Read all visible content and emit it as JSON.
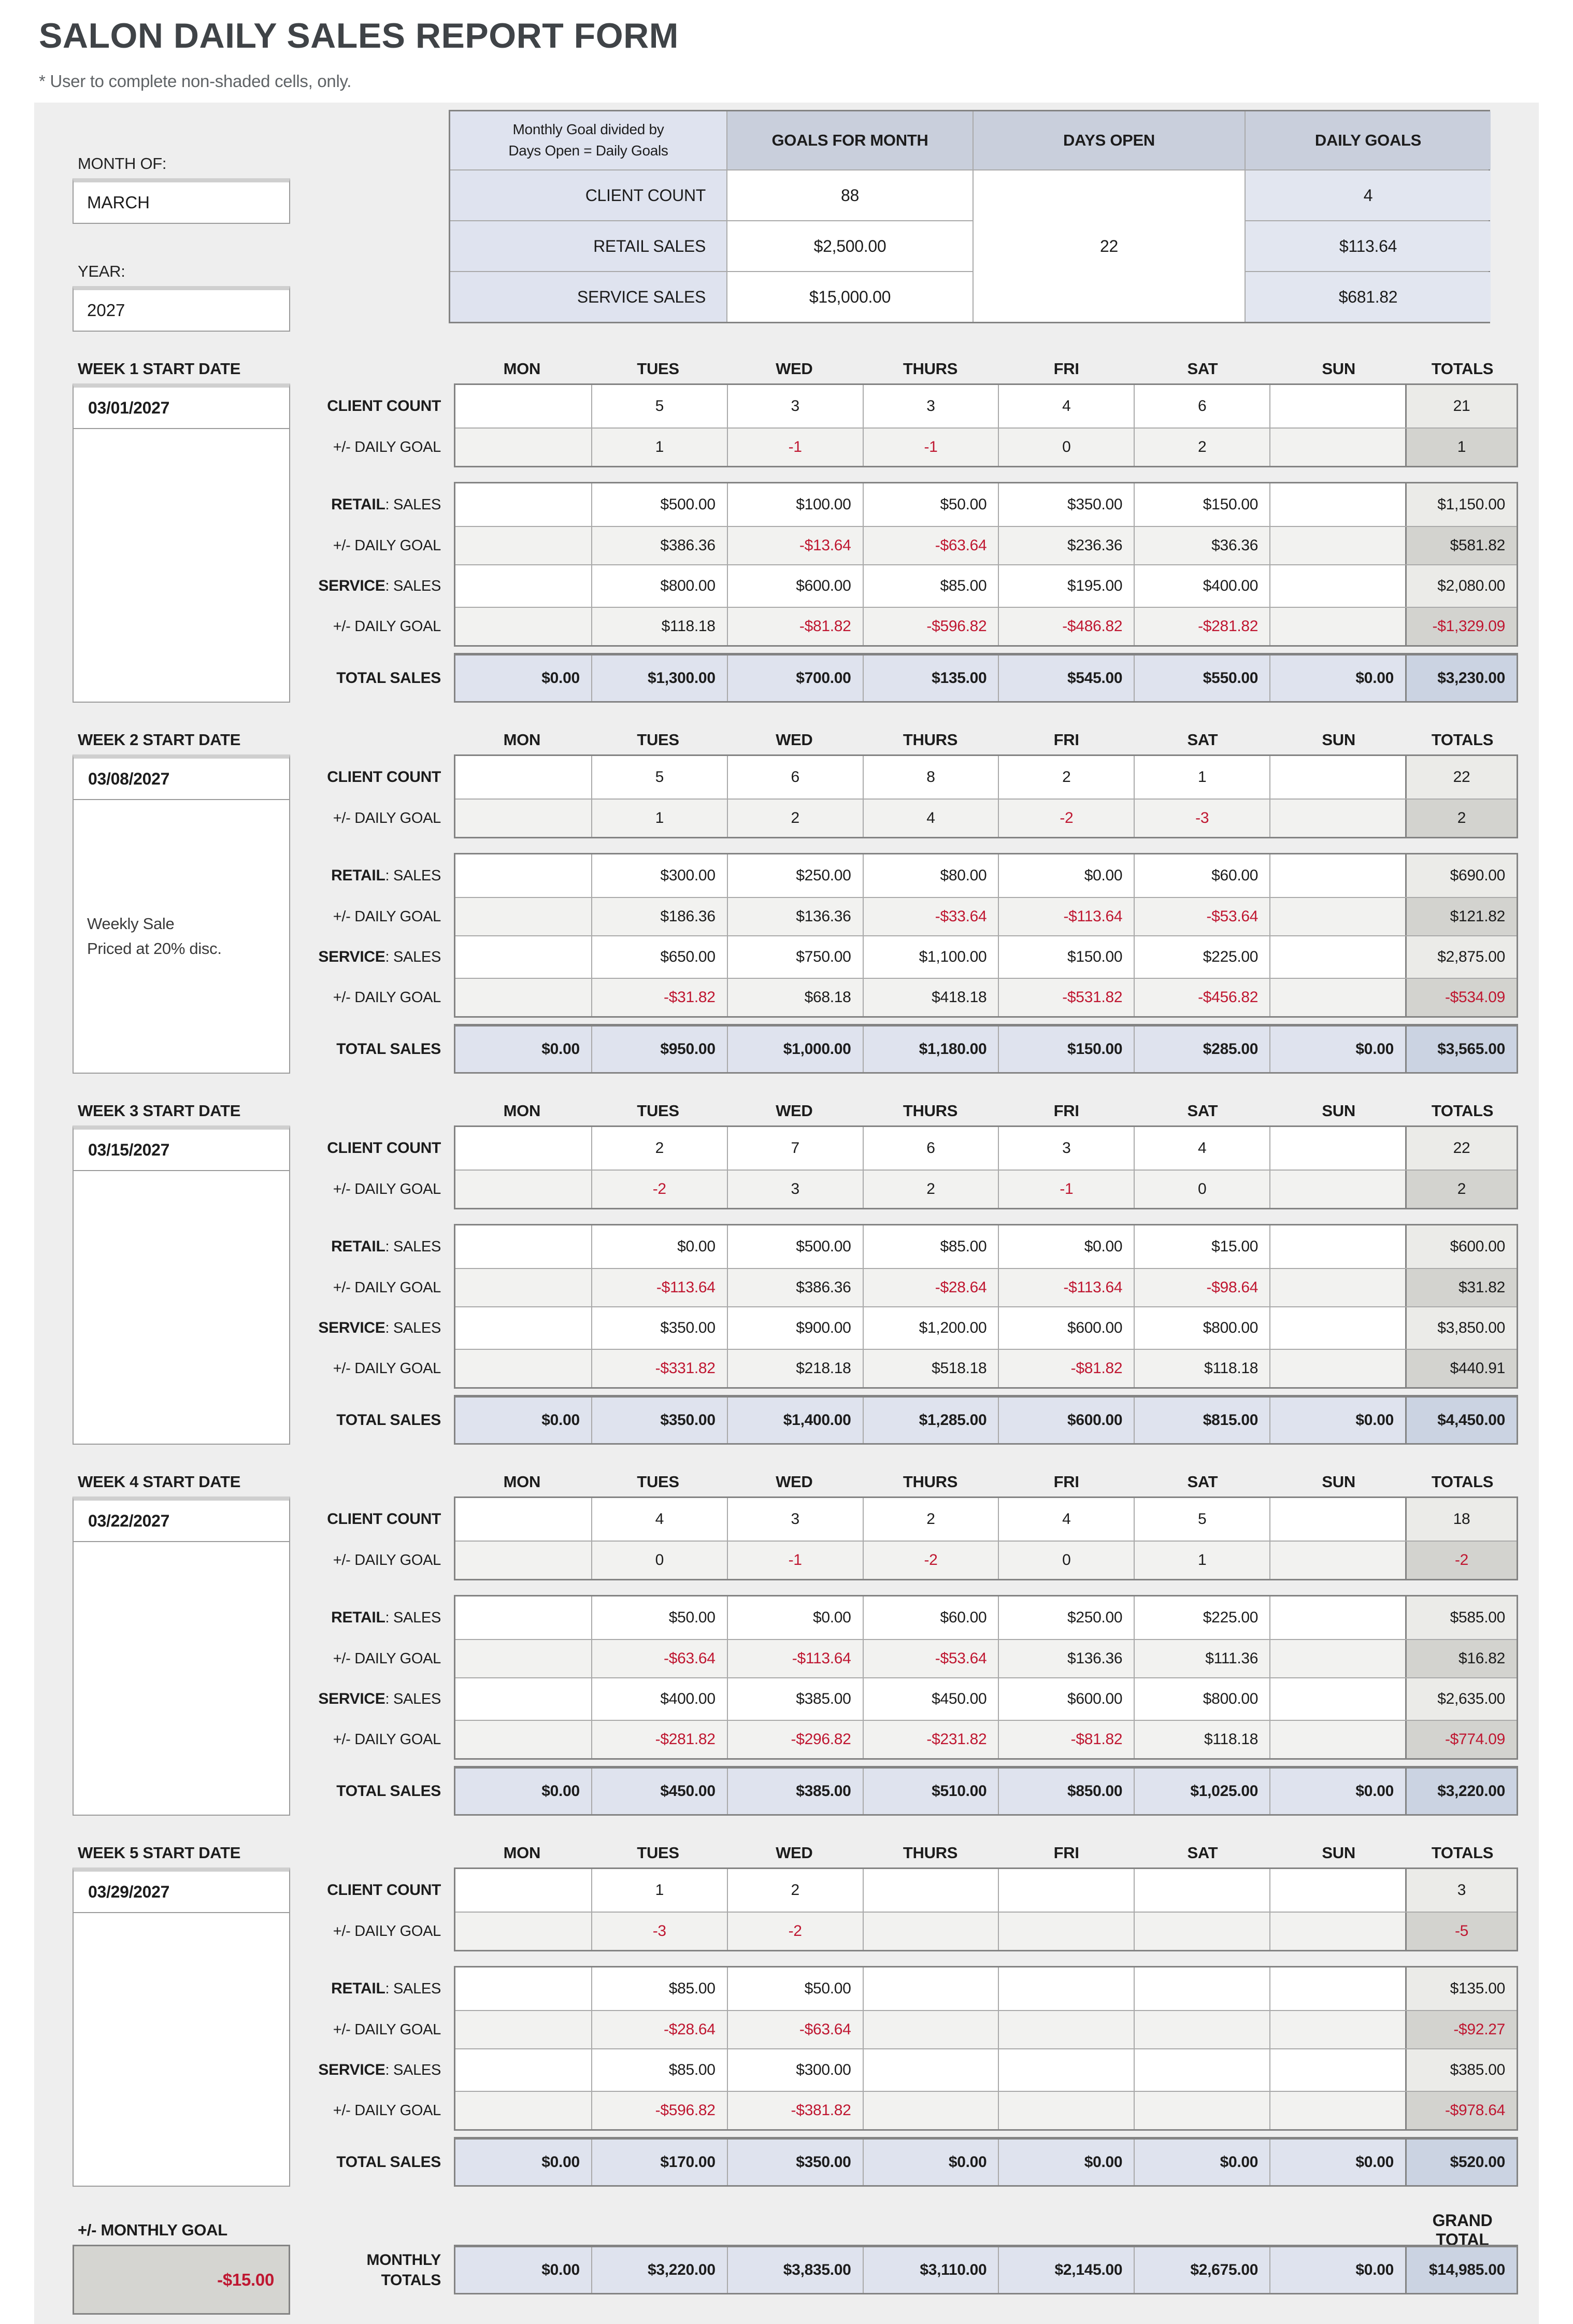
{
  "title": "SALON DAILY SALES REPORT FORM",
  "subtitle": "* User to complete non-shaded cells, only.",
  "form": {
    "month_label": "MONTH OF:",
    "month_value": "MARCH",
    "year_label": "YEAR:",
    "year_value": "2027"
  },
  "goals": {
    "note1": "Monthly Goal divided by",
    "note2": "Days Open =  Daily Goals",
    "headers": [
      "GOALS FOR MONTH",
      "DAYS OPEN",
      "DAILY GOALS"
    ],
    "days_open": "22",
    "rows": [
      {
        "label": "CLIENT COUNT",
        "month": "88",
        "daily": "4"
      },
      {
        "label": "RETAIL SALES",
        "month": "$2,500.00",
        "daily": "$113.64"
      },
      {
        "label": "SERVICE SALES",
        "month": "$15,000.00",
        "daily": "$681.82"
      }
    ]
  },
  "day_headers": [
    "MON",
    "TUES",
    "WED",
    "THURS",
    "FRI",
    "SAT",
    "SUN",
    "TOTALS"
  ],
  "weeks": [
    {
      "label": "WEEK 1 START DATE",
      "date": "03/01/2027",
      "note": "",
      "client_rows": [
        {
          "label_strong": "CLIENT COUNT",
          "label_rest": "",
          "type": "count",
          "cells": [
            "",
            "5",
            "3",
            "3",
            "4",
            "6",
            "",
            "21"
          ]
        },
        {
          "label_strong": "",
          "label_rest": "+/- DAILY GOAL",
          "type": "count-goal",
          "cells": [
            "",
            "1",
            "-1",
            "-1",
            "0",
            "2",
            "",
            "1"
          ]
        }
      ],
      "sales_rows": [
        {
          "label_strong": "RETAIL",
          "label_rest": ": SALES",
          "type": "sales",
          "cells": [
            "",
            "$500.00",
            "$100.00",
            "$50.00",
            "$350.00",
            "$150.00",
            "",
            "$1,150.00"
          ]
        },
        {
          "label_strong": "",
          "label_rest": "+/- DAILY GOAL",
          "type": "sales-goal",
          "cells": [
            "",
            "$386.36",
            "-$13.64",
            "-$63.64",
            "$236.36",
            "$36.36",
            "",
            "$581.82"
          ]
        },
        {
          "label_strong": "SERVICE",
          "label_rest": ": SALES",
          "type": "sales",
          "cells": [
            "",
            "$800.00",
            "$600.00",
            "$85.00",
            "$195.00",
            "$400.00",
            "",
            "$2,080.00"
          ]
        },
        {
          "label_strong": "",
          "label_rest": "+/- DAILY GOAL",
          "type": "sales-goal",
          "cells": [
            "",
            "$118.18",
            "-$81.82",
            "-$596.82",
            "-$486.82",
            "-$281.82",
            "",
            "-$1,329.09"
          ]
        }
      ],
      "total_rows": [
        {
          "label_strong": "TOTAL SALES",
          "label_rest": "",
          "type": "total",
          "cells": [
            "$0.00",
            "$1,300.00",
            "$700.00",
            "$135.00",
            "$545.00",
            "$550.00",
            "$0.00",
            "$3,230.00"
          ]
        }
      ]
    },
    {
      "label": "WEEK 2 START DATE",
      "date": "03/08/2027",
      "note": "Weekly Sale\nPriced at 20% disc.",
      "client_rows": [
        {
          "label_strong": "CLIENT COUNT",
          "label_rest": "",
          "type": "count",
          "cells": [
            "",
            "5",
            "6",
            "8",
            "2",
            "1",
            "",
            "22"
          ]
        },
        {
          "label_strong": "",
          "label_rest": "+/- DAILY GOAL",
          "type": "count-goal",
          "cells": [
            "",
            "1",
            "2",
            "4",
            "-2",
            "-3",
            "",
            "2"
          ]
        }
      ],
      "sales_rows": [
        {
          "label_strong": "RETAIL",
          "label_rest": ": SALES",
          "type": "sales",
          "cells": [
            "",
            "$300.00",
            "$250.00",
            "$80.00",
            "$0.00",
            "$60.00",
            "",
            "$690.00"
          ]
        },
        {
          "label_strong": "",
          "label_rest": "+/- DAILY GOAL",
          "type": "sales-goal",
          "cells": [
            "",
            "$186.36",
            "$136.36",
            "-$33.64",
            "-$113.64",
            "-$53.64",
            "",
            "$121.82"
          ]
        },
        {
          "label_strong": "SERVICE",
          "label_rest": ": SALES",
          "type": "sales",
          "cells": [
            "",
            "$650.00",
            "$750.00",
            "$1,100.00",
            "$150.00",
            "$225.00",
            "",
            "$2,875.00"
          ]
        },
        {
          "label_strong": "",
          "label_rest": "+/- DAILY GOAL",
          "type": "sales-goal",
          "cells": [
            "",
            "-$31.82",
            "$68.18",
            "$418.18",
            "-$531.82",
            "-$456.82",
            "",
            "-$534.09"
          ]
        }
      ],
      "total_rows": [
        {
          "label_strong": "TOTAL SALES",
          "label_rest": "",
          "type": "total",
          "cells": [
            "$0.00",
            "$950.00",
            "$1,000.00",
            "$1,180.00",
            "$150.00",
            "$285.00",
            "$0.00",
            "$3,565.00"
          ]
        }
      ]
    },
    {
      "label": "WEEK 3 START DATE",
      "date": "03/15/2027",
      "note": "",
      "client_rows": [
        {
          "label_strong": "CLIENT COUNT",
          "label_rest": "",
          "type": "count",
          "cells": [
            "",
            "2",
            "7",
            "6",
            "3",
            "4",
            "",
            "22"
          ]
        },
        {
          "label_strong": "",
          "label_rest": "+/- DAILY GOAL",
          "type": "count-goal",
          "cells": [
            "",
            "-2",
            "3",
            "2",
            "-1",
            "0",
            "",
            "2"
          ]
        }
      ],
      "sales_rows": [
        {
          "label_strong": "RETAIL",
          "label_rest": ": SALES",
          "type": "sales",
          "cells": [
            "",
            "$0.00",
            "$500.00",
            "$85.00",
            "$0.00",
            "$15.00",
            "",
            "$600.00"
          ]
        },
        {
          "label_strong": "",
          "label_rest": "+/- DAILY GOAL",
          "type": "sales-goal",
          "cells": [
            "",
            "-$113.64",
            "$386.36",
            "-$28.64",
            "-$113.64",
            "-$98.64",
            "",
            "$31.82"
          ]
        },
        {
          "label_strong": "SERVICE",
          "label_rest": ": SALES",
          "type": "sales",
          "cells": [
            "",
            "$350.00",
            "$900.00",
            "$1,200.00",
            "$600.00",
            "$800.00",
            "",
            "$3,850.00"
          ]
        },
        {
          "label_strong": "",
          "label_rest": "+/- DAILY GOAL",
          "type": "sales-goal",
          "cells": [
            "",
            "-$331.82",
            "$218.18",
            "$518.18",
            "-$81.82",
            "$118.18",
            "",
            "$440.91"
          ]
        }
      ],
      "total_rows": [
        {
          "label_strong": "TOTAL SALES",
          "label_rest": "",
          "type": "total",
          "cells": [
            "$0.00",
            "$350.00",
            "$1,400.00",
            "$1,285.00",
            "$600.00",
            "$815.00",
            "$0.00",
            "$4,450.00"
          ]
        }
      ]
    },
    {
      "label": "WEEK 4 START DATE",
      "date": "03/22/2027",
      "note": "",
      "client_rows": [
        {
          "label_strong": "CLIENT COUNT",
          "label_rest": "",
          "type": "count",
          "cells": [
            "",
            "4",
            "3",
            "2",
            "4",
            "5",
            "",
            "18"
          ]
        },
        {
          "label_strong": "",
          "label_rest": "+/- DAILY GOAL",
          "type": "count-goal",
          "cells": [
            "",
            "0",
            "-1",
            "-2",
            "0",
            "1",
            "",
            "-2"
          ]
        }
      ],
      "sales_rows": [
        {
          "label_strong": "RETAIL",
          "label_rest": ": SALES",
          "type": "sales",
          "cells": [
            "",
            "$50.00",
            "$0.00",
            "$60.00",
            "$250.00",
            "$225.00",
            "",
            "$585.00"
          ]
        },
        {
          "label_strong": "",
          "label_rest": "+/- DAILY GOAL",
          "type": "sales-goal",
          "cells": [
            "",
            "-$63.64",
            "-$113.64",
            "-$53.64",
            "$136.36",
            "$111.36",
            "",
            "$16.82"
          ]
        },
        {
          "label_strong": "SERVICE",
          "label_rest": ": SALES",
          "type": "sales",
          "cells": [
            "",
            "$400.00",
            "$385.00",
            "$450.00",
            "$600.00",
            "$800.00",
            "",
            "$2,635.00"
          ]
        },
        {
          "label_strong": "",
          "label_rest": "+/- DAILY GOAL",
          "type": "sales-goal",
          "cells": [
            "",
            "-$281.82",
            "-$296.82",
            "-$231.82",
            "-$81.82",
            "$118.18",
            "",
            "-$774.09"
          ]
        }
      ],
      "total_rows": [
        {
          "label_strong": "TOTAL SALES",
          "label_rest": "",
          "type": "total",
          "cells": [
            "$0.00",
            "$450.00",
            "$385.00",
            "$510.00",
            "$850.00",
            "$1,025.00",
            "$0.00",
            "$3,220.00"
          ]
        }
      ]
    },
    {
      "label": "WEEK 5 START DATE",
      "date": "03/29/2027",
      "note": "",
      "client_rows": [
        {
          "label_strong": "CLIENT COUNT",
          "label_rest": "",
          "type": "count",
          "cells": [
            "",
            "1",
            "2",
            "",
            "",
            "",
            "",
            "3"
          ]
        },
        {
          "label_strong": "",
          "label_rest": "+/- DAILY GOAL",
          "type": "count-goal",
          "cells": [
            "",
            "-3",
            "-2",
            "",
            "",
            "",
            "",
            "-5"
          ]
        }
      ],
      "sales_rows": [
        {
          "label_strong": "RETAIL",
          "label_rest": ": SALES",
          "type": "sales",
          "cells": [
            "",
            "$85.00",
            "$50.00",
            "",
            "",
            "",
            "",
            "$135.00"
          ]
        },
        {
          "label_strong": "",
          "label_rest": "+/- DAILY GOAL",
          "type": "sales-goal",
          "cells": [
            "",
            "-$28.64",
            "-$63.64",
            "",
            "",
            "",
            "",
            "-$92.27"
          ]
        },
        {
          "label_strong": "SERVICE",
          "label_rest": ": SALES",
          "type": "sales",
          "cells": [
            "",
            "$85.00",
            "$300.00",
            "",
            "",
            "",
            "",
            "$385.00"
          ]
        },
        {
          "label_strong": "",
          "label_rest": "+/- DAILY GOAL",
          "type": "sales-goal",
          "cells": [
            "",
            "-$596.82",
            "-$381.82",
            "",
            "",
            "",
            "",
            "-$978.64"
          ]
        }
      ],
      "total_rows": [
        {
          "label_strong": "TOTAL SALES",
          "label_rest": "",
          "type": "total",
          "cells": [
            "$0.00",
            "$170.00",
            "$350.00",
            "$0.00",
            "$0.00",
            "$0.00",
            "$0.00",
            "$520.00"
          ]
        }
      ]
    }
  ],
  "monthly": {
    "goal_label": "+/- MONTHLY GOAL",
    "goal_value": "-$15.00",
    "label1": "MONTHLY",
    "label2": "TOTALS",
    "grand_total_label": "GRAND TOTAL",
    "cells": [
      "$0.00",
      "$3,220.00",
      "$3,835.00",
      "$3,110.00",
      "$2,145.00",
      "$2,675.00",
      "$0.00",
      "$14,985.00"
    ]
  },
  "colors": {
    "negative_red": "#bf1731",
    "panel_gray": "#eeeeee",
    "goals_header": "#c9cfdc",
    "total_row_blue": "#dfe3ee"
  }
}
